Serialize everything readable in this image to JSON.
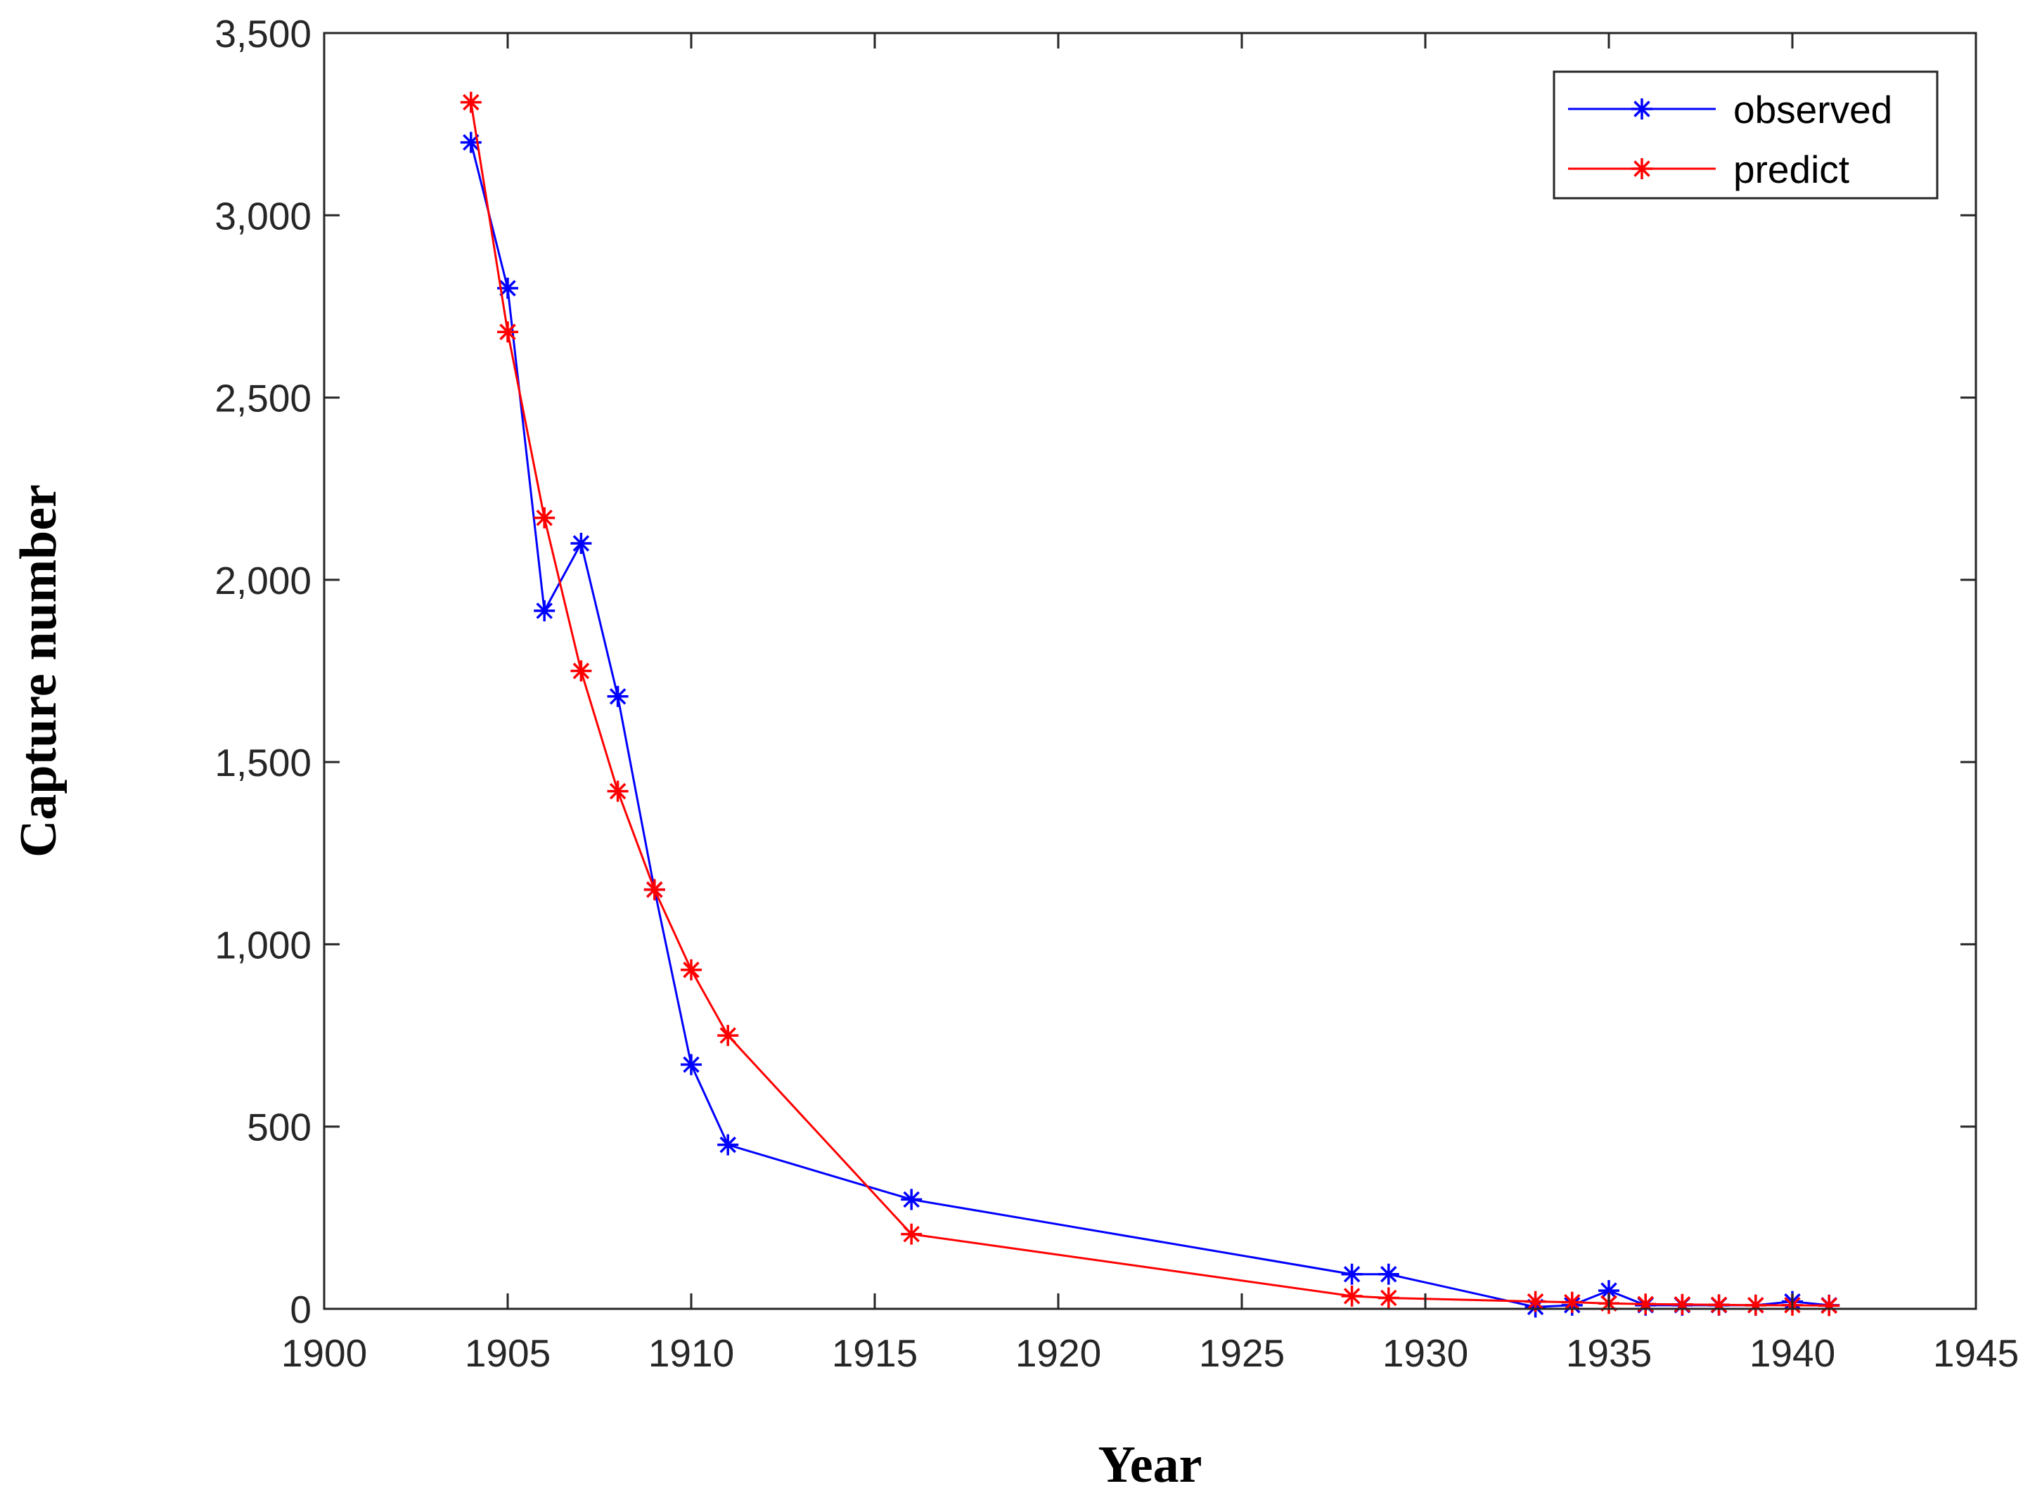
{
  "chart_data": {
    "type": "line",
    "xlabel": "Year",
    "ylabel": "Capture number",
    "xlim": [
      1900,
      1945
    ],
    "ylim": [
      0,
      3500
    ],
    "x_ticks": [
      "1900",
      "1905",
      "1910",
      "1915",
      "1920",
      "1925",
      "1930",
      "1935",
      "1940",
      "1945"
    ],
    "y_ticks": [
      "0",
      "500",
      "1,000",
      "1,500",
      "2,000",
      "2,500",
      "3,000",
      "3,500"
    ],
    "legend_position": "top-right",
    "grid": false,
    "marker": "asterisk",
    "series": [
      {
        "name": "observed",
        "color": "#0000ff",
        "points": [
          [
            1904,
            3200
          ],
          [
            1905,
            2800
          ],
          [
            1906,
            1915
          ],
          [
            1907,
            2100
          ],
          [
            1908,
            1680
          ],
          [
            1909,
            1150
          ],
          [
            1910,
            670
          ],
          [
            1911,
            450
          ],
          [
            1916,
            300
          ],
          [
            1928,
            95
          ],
          [
            1929,
            95
          ],
          [
            1933,
            5
          ],
          [
            1934,
            10
          ],
          [
            1935,
            50
          ],
          [
            1936,
            10
          ],
          [
            1937,
            10
          ],
          [
            1938,
            10
          ],
          [
            1939,
            10
          ],
          [
            1940,
            20
          ],
          [
            1941,
            10
          ]
        ]
      },
      {
        "name": "predict",
        "color": "#ff0000",
        "points": [
          [
            1904,
            3310
          ],
          [
            1905,
            2680
          ],
          [
            1906,
            2170
          ],
          [
            1907,
            1750
          ],
          [
            1908,
            1420
          ],
          [
            1909,
            1150
          ],
          [
            1910,
            930
          ],
          [
            1911,
            750
          ],
          [
            1916,
            205
          ],
          [
            1928,
            35
          ],
          [
            1929,
            30
          ],
          [
            1933,
            20
          ],
          [
            1934,
            18
          ],
          [
            1935,
            15
          ],
          [
            1936,
            13
          ],
          [
            1937,
            12
          ],
          [
            1938,
            11
          ],
          [
            1939,
            10
          ],
          [
            1940,
            10
          ],
          [
            1941,
            9
          ]
        ]
      }
    ]
  }
}
